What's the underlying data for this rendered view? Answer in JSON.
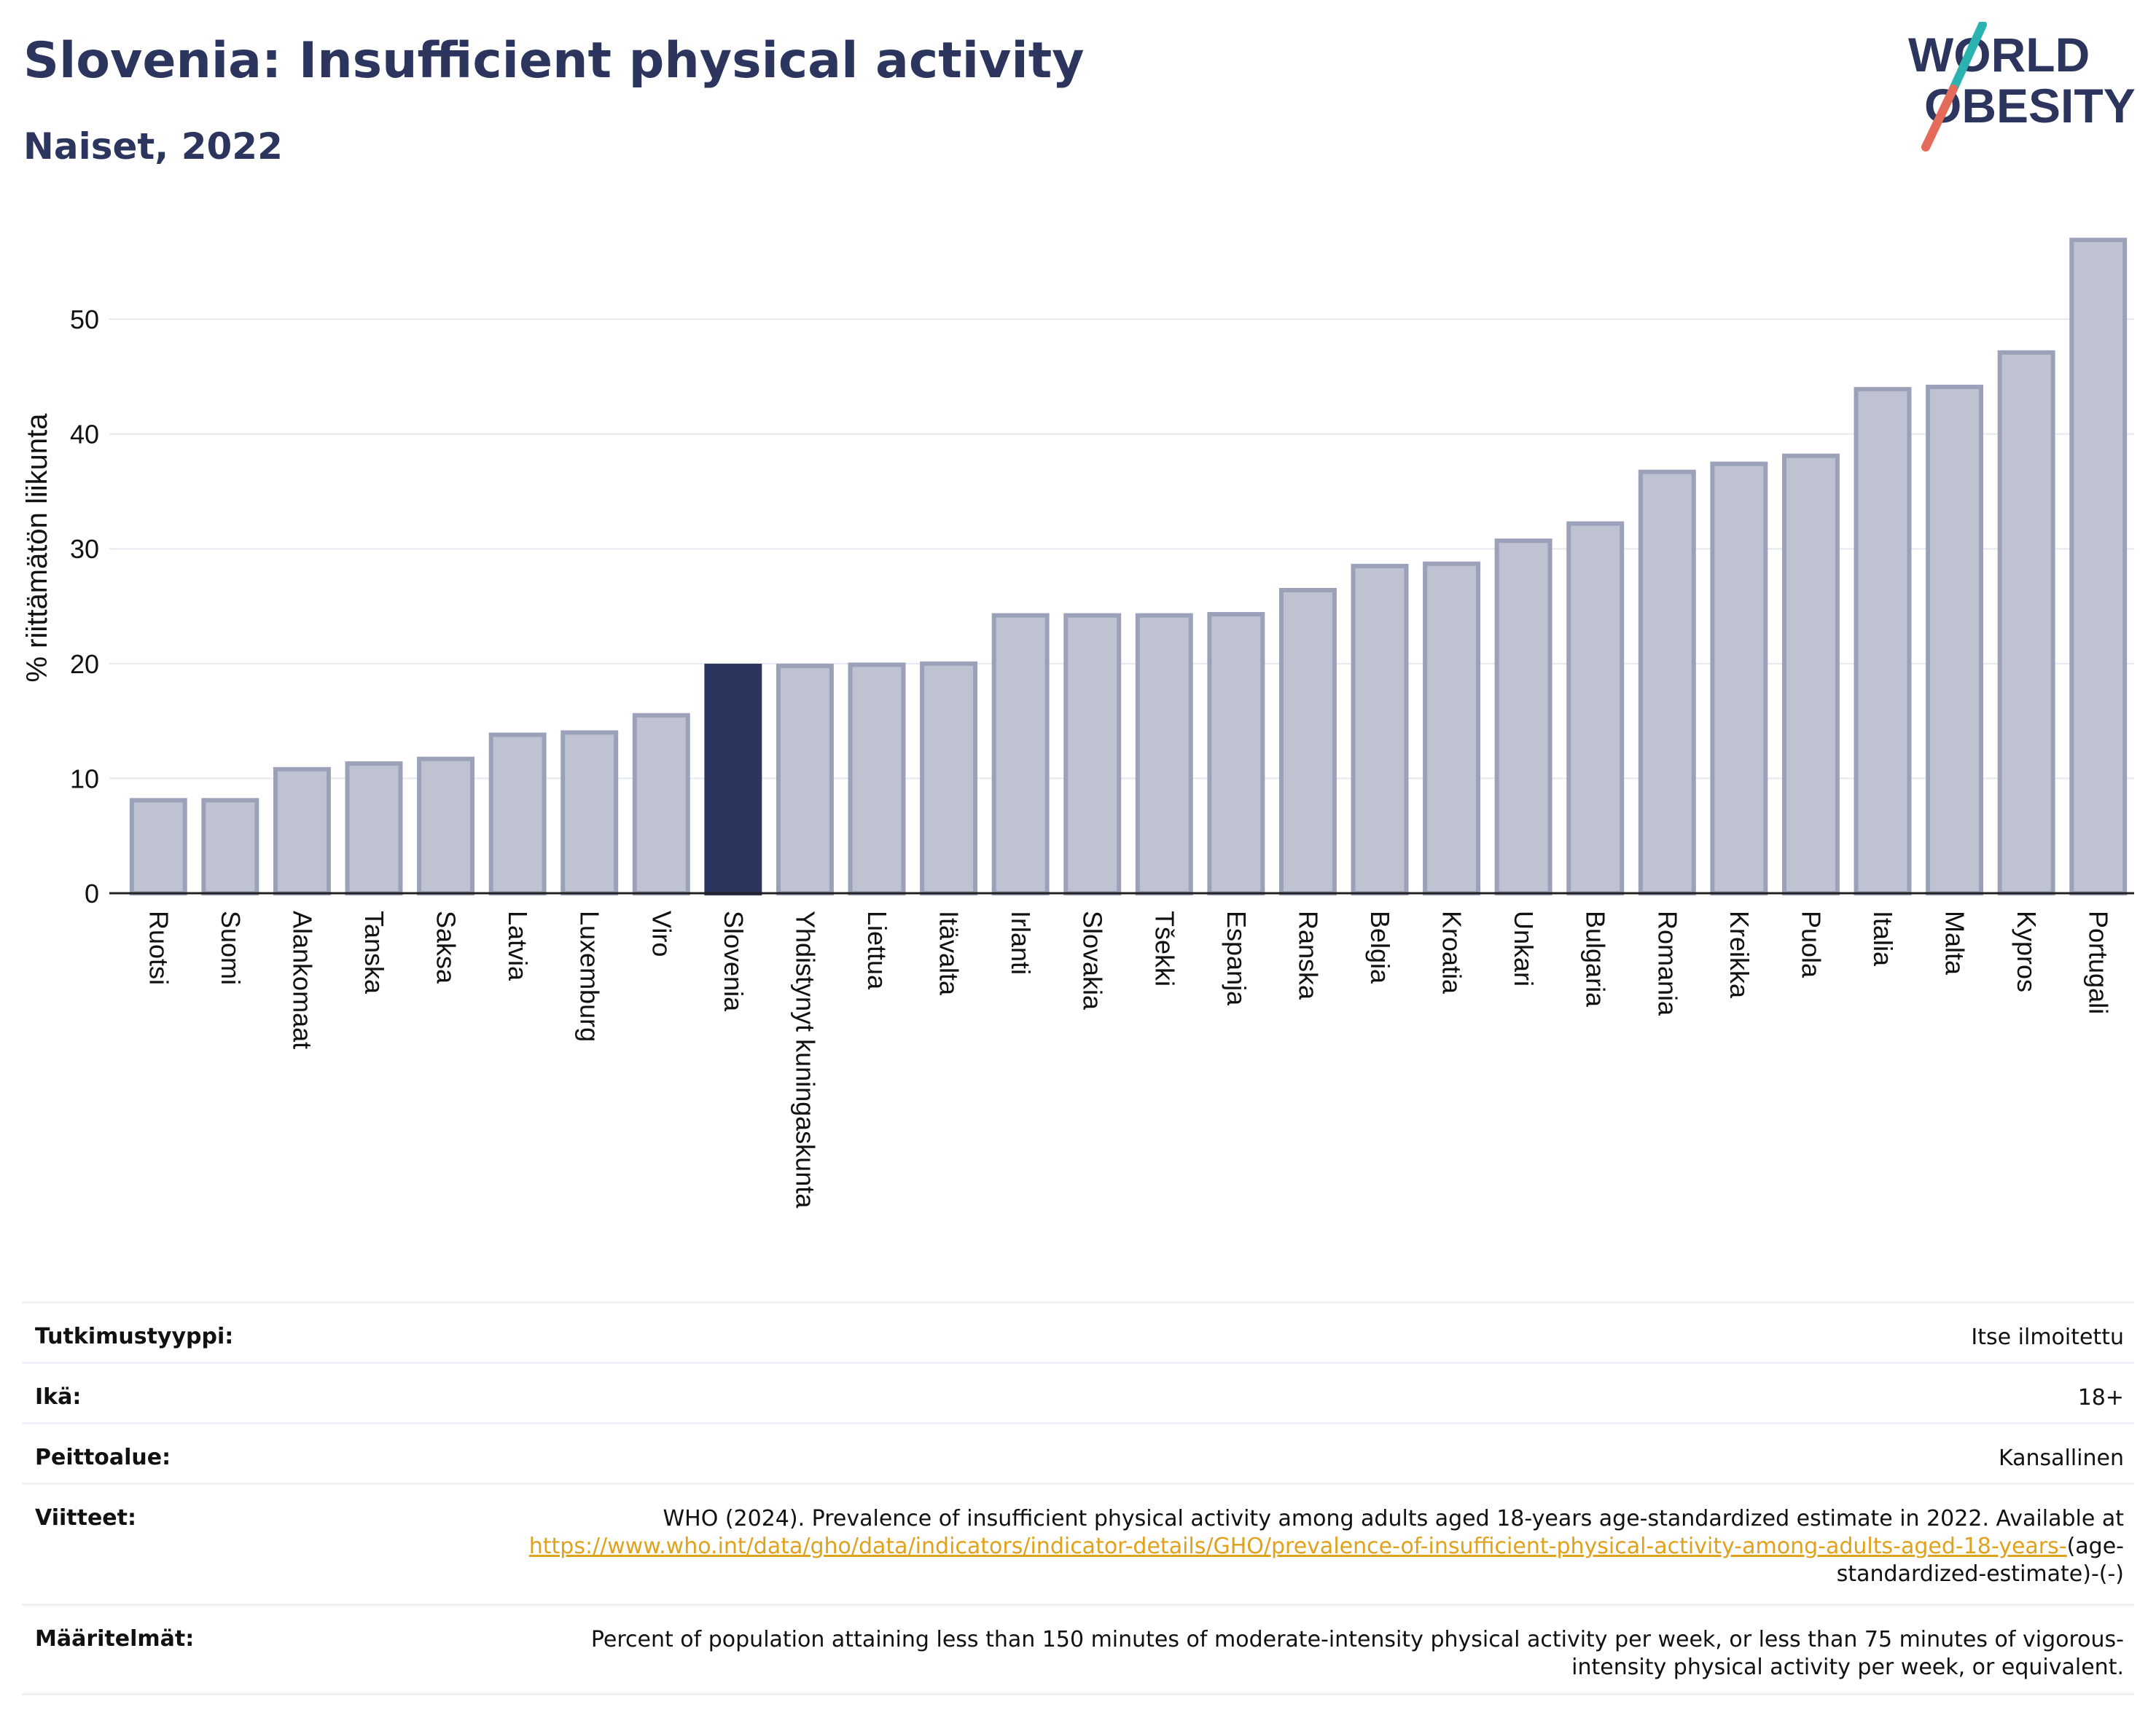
{
  "header": {
    "title": "Slovenia: Insufficient physical activity",
    "subtitle": "Naiset, 2022",
    "logo_line1": "WORLD",
    "logo_line2": "OBESITY"
  },
  "colors": {
    "highlight_bar": "#2b355e",
    "other_bar_fill": "#bfc2d0",
    "other_bar_border": "#9ba1b9",
    "logo_slash_top": "#2ab3b0",
    "logo_slash_bottom": "#e46a5a",
    "link": "#e0a21d"
  },
  "chart_data": {
    "type": "bar",
    "ylabel": "% riittämätön liikunta",
    "ylim": [
      0,
      58
    ],
    "yticks": [
      0,
      10,
      20,
      30,
      40,
      50
    ],
    "grid": true,
    "highlight": "Slovenia",
    "categories": [
      "Ruotsi",
      "Suomi",
      "Alankomaat",
      "Tanska",
      "Saksa",
      "Latvia",
      "Luxemburg",
      "Viro",
      "Slovenia",
      "Yhdistynyt kuningaskunta",
      "Liettua",
      "Itävalta",
      "Irlanti",
      "Slovakia",
      "Tšekki",
      "Espanja",
      "Ranska",
      "Belgia",
      "Kroatia",
      "Unkari",
      "Bulgaria",
      "Romania",
      "Kreikka",
      "Puola",
      "Italia",
      "Malta",
      "Kypros",
      "Portugali"
    ],
    "values": [
      8.1,
      8.1,
      10.8,
      11.3,
      11.7,
      13.8,
      14.0,
      15.5,
      19.8,
      19.8,
      19.9,
      20.0,
      24.2,
      24.2,
      24.2,
      24.3,
      26.4,
      28.5,
      28.7,
      30.7,
      32.2,
      36.7,
      37.4,
      38.1,
      43.9,
      44.1,
      47.1,
      56.9
    ]
  },
  "info": {
    "rows": [
      {
        "label": "Tutkimustyyppi:",
        "value": "Itse ilmoitettu"
      },
      {
        "label": "Ikä:",
        "value": "18+"
      },
      {
        "label": "Peittoalue:",
        "value": "Kansallinen"
      }
    ],
    "references_label": "Viitteet:",
    "references_text": "WHO (2024). Prevalence of insufficient physical activity among adults aged 18-years age-standardized estimate in 2022. Available at",
    "references_link": "https://www.who.int/data/gho/data/indicators/indicator-details/GHO/prevalence-of-insufficient-physical-activity-among-adults-aged-18-years-",
    "references_suffix": "(age-standardized-estimate)-(-)",
    "definitions_label": "Määritelmät:",
    "definitions_text": "Percent of population attaining less than 150 minutes of moderate-intensity physical activity per week, or less than 75 minutes of vigorous-intensity physical activity per week, or equivalent."
  }
}
